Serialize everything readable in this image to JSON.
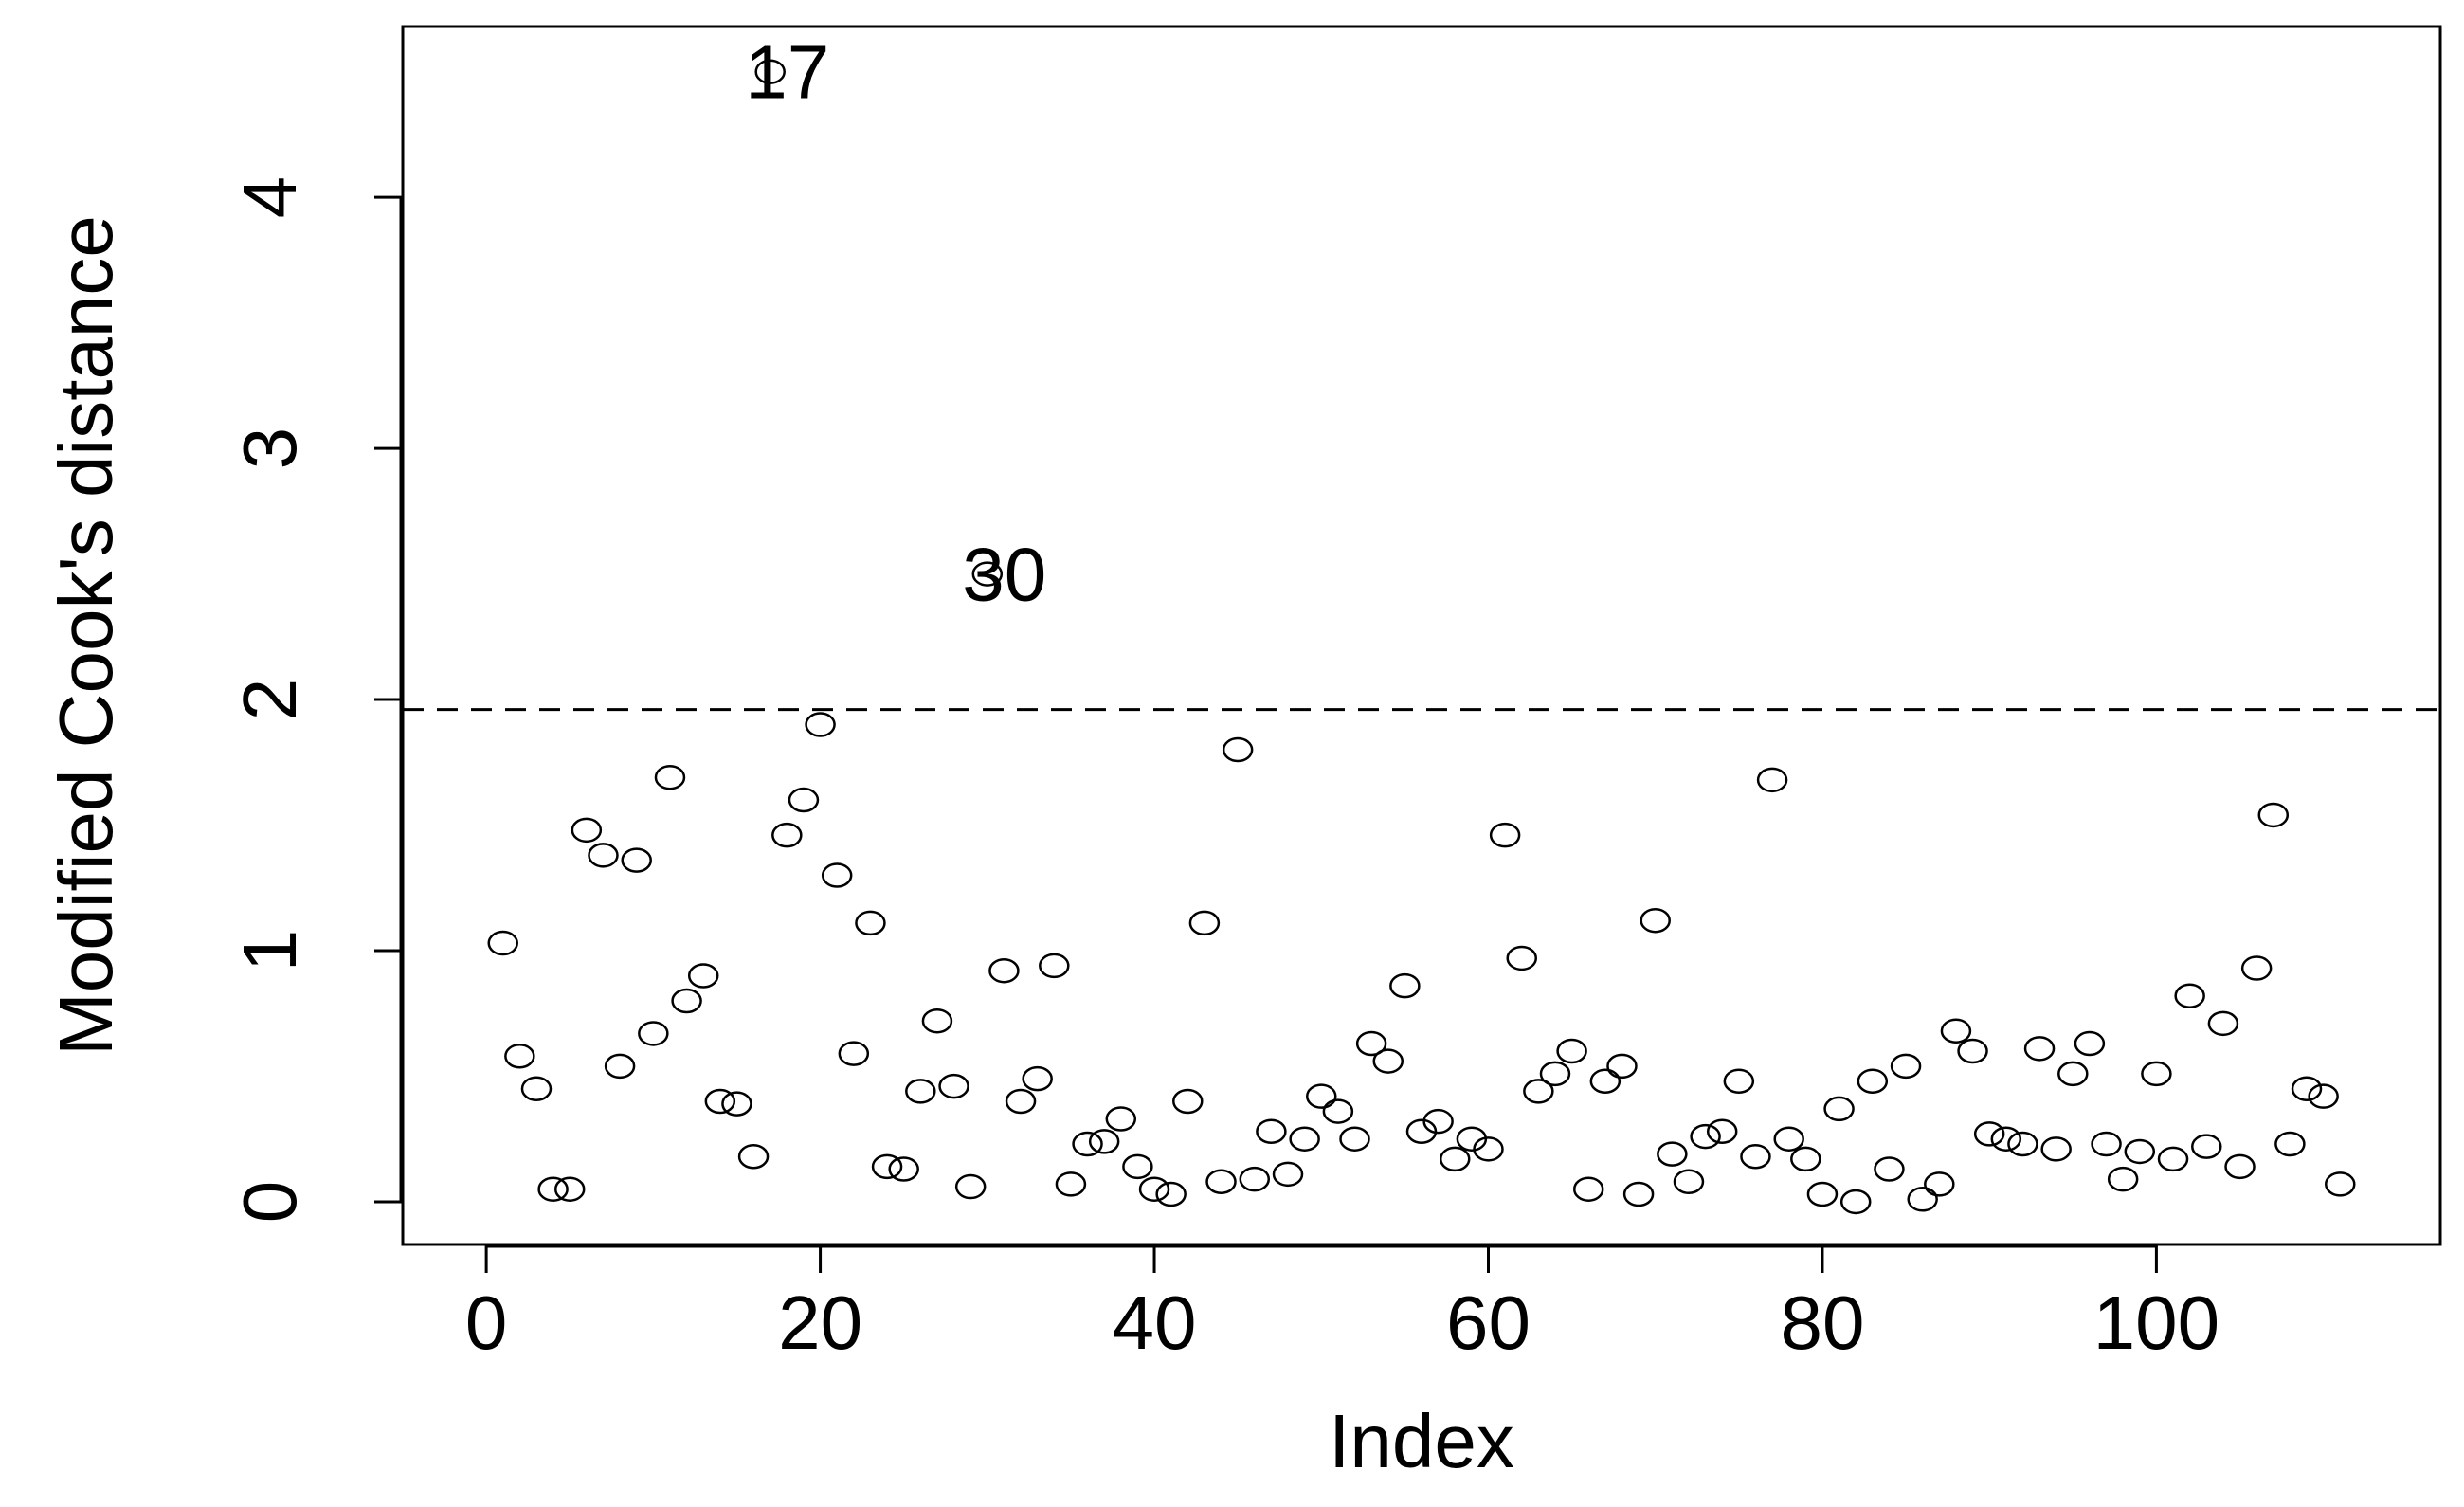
{
  "chart_data": {
    "type": "scatter",
    "xlabel": "Index",
    "ylabel": "Modified Cook's distance",
    "xlim": [
      -5,
      117
    ],
    "ylim": [
      -0.17,
      4.68
    ],
    "x_ticks": [
      {
        "value": 0,
        "label": "0"
      },
      {
        "value": 20,
        "label": "20"
      },
      {
        "value": 40,
        "label": "40"
      },
      {
        "value": 60,
        "label": "60"
      },
      {
        "value": 80,
        "label": "80"
      },
      {
        "value": 100,
        "label": "100"
      }
    ],
    "y_ticks": [
      {
        "value": 0,
        "label": "0"
      },
      {
        "value": 1,
        "label": "1"
      },
      {
        "value": 2,
        "label": "2"
      },
      {
        "value": 3,
        "label": "3"
      },
      {
        "value": 4,
        "label": "4"
      }
    ],
    "threshold": 1.96,
    "grid": false,
    "series": [
      {
        "marker": "open-circle",
        "x": [
          1,
          2,
          3,
          4,
          5,
          6,
          7,
          8,
          9,
          10,
          11,
          12,
          13,
          14,
          15,
          16,
          17,
          18,
          19,
          20,
          21,
          22,
          23,
          24,
          25,
          26,
          27,
          28,
          29,
          30,
          31,
          32,
          33,
          34,
          35,
          36,
          37,
          38,
          39,
          40,
          41,
          42,
          43,
          44,
          45,
          46,
          47,
          48,
          49,
          50,
          51,
          52,
          53,
          54,
          55,
          56,
          57,
          58,
          59,
          60,
          61,
          62,
          63,
          64,
          65,
          66,
          67,
          68,
          69,
          70,
          71,
          72,
          73,
          74,
          75,
          76,
          77,
          78,
          79,
          80,
          81,
          82,
          83,
          84,
          85,
          86,
          87,
          88,
          89,
          90,
          91,
          92,
          93,
          94,
          95,
          96,
          97,
          98,
          99,
          100,
          101,
          102,
          103,
          104,
          105,
          106,
          107,
          108,
          109,
          110,
          111
        ],
        "y": [
          1.03,
          0.58,
          0.45,
          0.05,
          0.05,
          1.48,
          1.38,
          0.54,
          1.36,
          0.67,
          1.69,
          0.8,
          0.9,
          0.4,
          0.39,
          0.18,
          4.5,
          1.46,
          1.6,
          1.9,
          1.3,
          0.59,
          1.11,
          0.14,
          0.13,
          0.44,
          0.72,
          0.46,
          0.06,
          2.5,
          0.92,
          0.4,
          0.49,
          0.94,
          0.07,
          0.23,
          0.24,
          0.33,
          0.14,
          0.05,
          0.03,
          0.4,
          1.11,
          0.08,
          1.8,
          0.09,
          0.28,
          0.11,
          0.25,
          0.42,
          0.36,
          0.25,
          0.63,
          0.56,
          0.86,
          0.28,
          0.32,
          0.17,
          0.25,
          0.21,
          1.46,
          0.97,
          0.44,
          0.51,
          0.6,
          0.05,
          0.48,
          0.54,
          0.03,
          1.12,
          0.19,
          0.08,
          0.26,
          0.28,
          0.48,
          0.18,
          1.68,
          0.25,
          0.17,
          0.03,
          0.37,
          0.0,
          0.48,
          0.13,
          0.54,
          0.01,
          0.07,
          0.68,
          0.6,
          0.27,
          0.25,
          0.23,
          0.61,
          0.21,
          0.51,
          0.63,
          0.23,
          0.09,
          0.2,
          0.51,
          0.17,
          0.82,
          0.22,
          0.71,
          0.14,
          0.93,
          1.54,
          0.23,
          0.45,
          0.42,
          0.07
        ]
      }
    ],
    "annotations": [
      {
        "text": "17",
        "x": 17,
        "y": 4.5
      },
      {
        "text": "30",
        "x": 30,
        "y": 2.5
      }
    ]
  }
}
